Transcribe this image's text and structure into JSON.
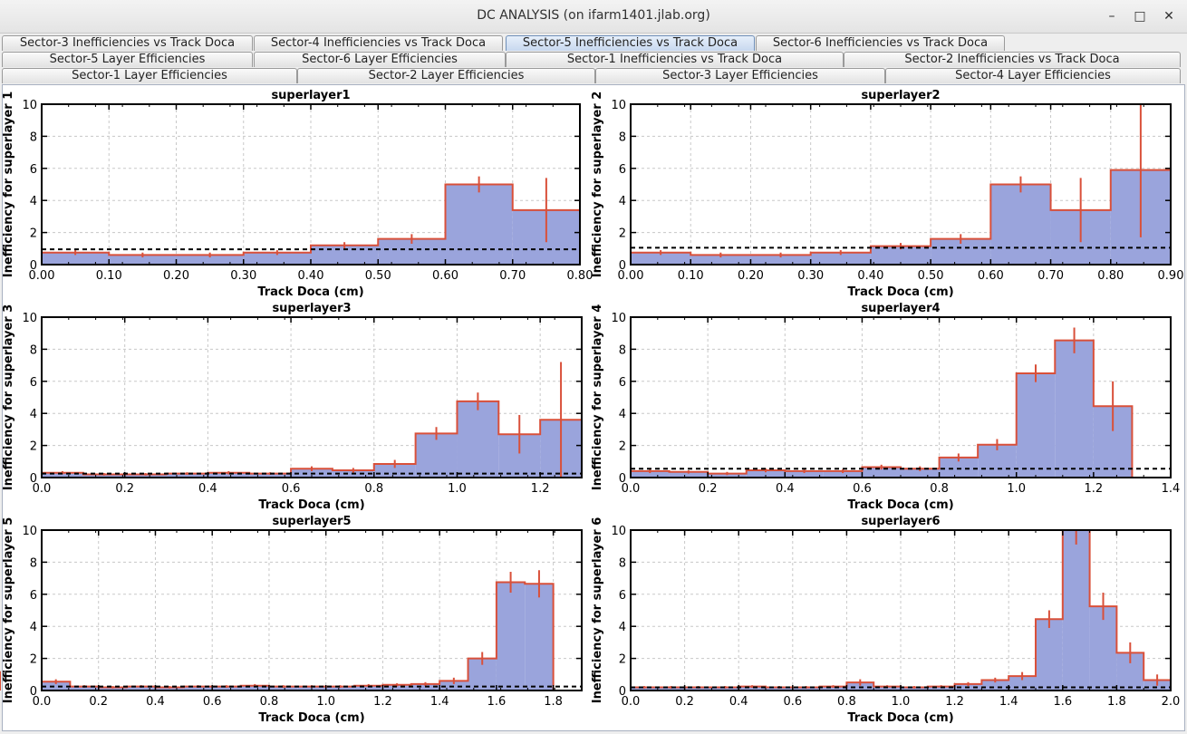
{
  "window": {
    "title": "DC ANALYSIS (on ifarm1401.jlab.org)",
    "minimize_glyph": "–",
    "maximize_glyph": "□",
    "close_glyph": "✕"
  },
  "tabs": {
    "row1": [
      "Sector-3 Inefficiencies vs Track Doca",
      "Sector-4 Inefficiencies vs Track Doca",
      "Sector-5 Inefficiencies vs Track Doca",
      "Sector-6 Inefficiencies vs Track Doca"
    ],
    "row2": [
      "Sector-5 Layer Efficiencies",
      "Sector-6 Layer Efficiencies",
      "Sector-1 Inefficiencies vs Track Doca",
      "Sector-2 Inefficiencies vs Track Doca"
    ],
    "row3": [
      "Sector-1 Layer Efficiencies",
      "Sector-2 Layer Efficiencies",
      "Sector-3 Layer Efficiencies",
      "Sector-4 Layer Efficiencies"
    ],
    "selected": "Sector-5 Inefficiencies vs Track Doca"
  },
  "colors": {
    "fill": "#9aa4dc",
    "line": "#d9503a",
    "ref": "#000000",
    "grid": "#c8c8c8"
  },
  "chart_data": [
    {
      "type": "bar",
      "title": "superlayer1",
      "xlabel": "Track Doca (cm)",
      "ylabel": "Inefficiency for superlayer 1",
      "xlim": [
        0,
        0.8
      ],
      "ylim": [
        0,
        10
      ],
      "xticks": [
        "0.00",
        "0.10",
        "0.20",
        "0.30",
        "0.40",
        "0.50",
        "0.60",
        "0.70",
        "0.80"
      ],
      "yticks": [
        "0",
        "2",
        "4",
        "6",
        "8",
        "10"
      ],
      "bin_edges": [
        0,
        0.1,
        0.2,
        0.3,
        0.4,
        0.5,
        0.6,
        0.7,
        0.8
      ],
      "values": [
        0.75,
        0.6,
        0.6,
        0.75,
        1.2,
        1.6,
        5.0,
        3.4
      ],
      "errors": [
        0.15,
        0.15,
        0.15,
        0.15,
        0.2,
        0.3,
        0.5,
        2.0
      ],
      "reference": 0.95
    },
    {
      "type": "bar",
      "title": "superlayer2",
      "xlabel": "Track Doca (cm)",
      "ylabel": "Inefficiency for superlayer 2",
      "xlim": [
        0,
        0.9
      ],
      "ylim": [
        0,
        10
      ],
      "xticks": [
        "0.00",
        "0.10",
        "0.20",
        "0.30",
        "0.40",
        "0.50",
        "0.60",
        "0.70",
        "0.80",
        "0.90"
      ],
      "yticks": [
        "0",
        "2",
        "4",
        "6",
        "8",
        "10"
      ],
      "bin_edges": [
        0,
        0.1,
        0.2,
        0.3,
        0.4,
        0.5,
        0.6,
        0.7,
        0.8,
        0.9
      ],
      "values": [
        0.75,
        0.6,
        0.6,
        0.75,
        1.15,
        1.6,
        5.0,
        3.4,
        5.9
      ],
      "errors": [
        0.15,
        0.15,
        0.15,
        0.15,
        0.2,
        0.3,
        0.5,
        2.0,
        4.2
      ],
      "reference": 1.05
    },
    {
      "type": "bar",
      "title": "superlayer3",
      "xlabel": "Track Doca (cm)",
      "ylabel": "Inefficiency for superlayer 3",
      "xlim": [
        0,
        1.3
      ],
      "ylim": [
        0,
        10
      ],
      "xticks": [
        "0.0",
        "0.2",
        "0.4",
        "0.6",
        "0.8",
        "1.0",
        "1.2"
      ],
      "yticks": [
        "0",
        "2",
        "4",
        "6",
        "8",
        "10"
      ],
      "bin_edges": [
        0,
        0.1,
        0.2,
        0.3,
        0.4,
        0.5,
        0.6,
        0.7,
        0.8,
        0.9,
        1.0,
        1.1,
        1.2,
        1.3
      ],
      "values": [
        0.3,
        0.2,
        0.2,
        0.25,
        0.3,
        0.25,
        0.55,
        0.45,
        0.85,
        2.75,
        4.75,
        2.7,
        3.6
      ],
      "errors": [
        0.1,
        0.08,
        0.08,
        0.08,
        0.1,
        0.08,
        0.15,
        0.15,
        0.25,
        0.4,
        0.55,
        1.2,
        3.6
      ],
      "reference": 0.25
    },
    {
      "type": "bar",
      "title": "superlayer4",
      "xlabel": "Track Doca (cm)",
      "ylabel": "Inefficiency for superlayer 4",
      "xlim": [
        0,
        1.4
      ],
      "ylim": [
        0,
        10
      ],
      "xticks": [
        "0.0",
        "0.2",
        "0.4",
        "0.6",
        "0.8",
        "1.0",
        "1.2",
        "1.4"
      ],
      "yticks": [
        "0",
        "2",
        "4",
        "6",
        "8",
        "10"
      ],
      "bin_edges": [
        0,
        0.1,
        0.2,
        0.3,
        0.4,
        0.5,
        0.6,
        0.7,
        0.8,
        0.9,
        1.0,
        1.1,
        1.2,
        1.3
      ],
      "values": [
        0.4,
        0.35,
        0.25,
        0.45,
        0.4,
        0.4,
        0.65,
        0.55,
        1.25,
        2.05,
        6.5,
        8.55,
        4.45
      ],
      "errors": [
        0.12,
        0.1,
        0.1,
        0.12,
        0.12,
        0.12,
        0.15,
        0.15,
        0.25,
        0.35,
        0.55,
        0.8,
        1.55
      ],
      "reference": 0.55
    },
    {
      "type": "bar",
      "title": "superlayer5",
      "xlabel": "Track Doca (cm)",
      "ylabel": "Inefficiency for superlayer 5",
      "xlim": [
        0,
        1.9
      ],
      "ylim": [
        0,
        10
      ],
      "xticks": [
        "0.0",
        "0.2",
        "0.4",
        "0.6",
        "0.8",
        "1.0",
        "1.2",
        "1.4",
        "1.6",
        "1.8"
      ],
      "yticks": [
        "0",
        "2",
        "4",
        "6",
        "8",
        "10"
      ],
      "bin_edges": [
        0,
        0.1,
        0.2,
        0.3,
        0.4,
        0.5,
        0.6,
        0.7,
        0.8,
        0.9,
        1.0,
        1.1,
        1.2,
        1.3,
        1.4,
        1.5,
        1.6,
        1.7,
        1.8,
        1.9
      ],
      "values": [
        0.55,
        0.25,
        0.2,
        0.25,
        0.2,
        0.25,
        0.25,
        0.3,
        0.25,
        0.25,
        0.25,
        0.3,
        0.35,
        0.4,
        0.6,
        2.0,
        6.75,
        6.65,
        0,
        0.6
      ],
      "errors": [
        0.15,
        0.08,
        0.08,
        0.08,
        0.08,
        0.08,
        0.08,
        0.1,
        0.08,
        0.08,
        0.08,
        0.1,
        0.1,
        0.12,
        0.2,
        0.4,
        0.65,
        0.85,
        0,
        0.6
      ],
      "reference": 0.25
    },
    {
      "type": "bar",
      "title": "superlayer6",
      "xlabel": "Track Doca (cm)",
      "ylabel": "Inefficiency for superlayer 6",
      "xlim": [
        0,
        2.0
      ],
      "ylim": [
        0,
        10
      ],
      "xticks": [
        "0.0",
        "0.2",
        "0.4",
        "0.6",
        "0.8",
        "1.0",
        "1.2",
        "1.4",
        "1.6",
        "1.8",
        "2.0"
      ],
      "yticks": [
        "0",
        "2",
        "4",
        "6",
        "8",
        "10"
      ],
      "bin_edges": [
        0,
        0.1,
        0.2,
        0.3,
        0.4,
        0.5,
        0.6,
        0.7,
        0.8,
        0.9,
        1.0,
        1.1,
        1.2,
        1.3,
        1.4,
        1.5,
        1.6,
        1.7,
        1.8,
        1.9,
        2.0
      ],
      "values": [
        0.2,
        0.2,
        0.2,
        0.2,
        0.25,
        0.2,
        0.2,
        0.25,
        0.5,
        0.25,
        0.2,
        0.25,
        0.4,
        0.65,
        0.9,
        4.45,
        10.0,
        5.25,
        2.35,
        0.65
      ],
      "errors": [
        0.08,
        0.08,
        0.08,
        0.08,
        0.08,
        0.08,
        0.08,
        0.08,
        0.2,
        0.08,
        0.08,
        0.08,
        0.12,
        0.15,
        0.25,
        0.55,
        0.9,
        0.85,
        0.65,
        0.35
      ],
      "reference": 0.2
    }
  ]
}
